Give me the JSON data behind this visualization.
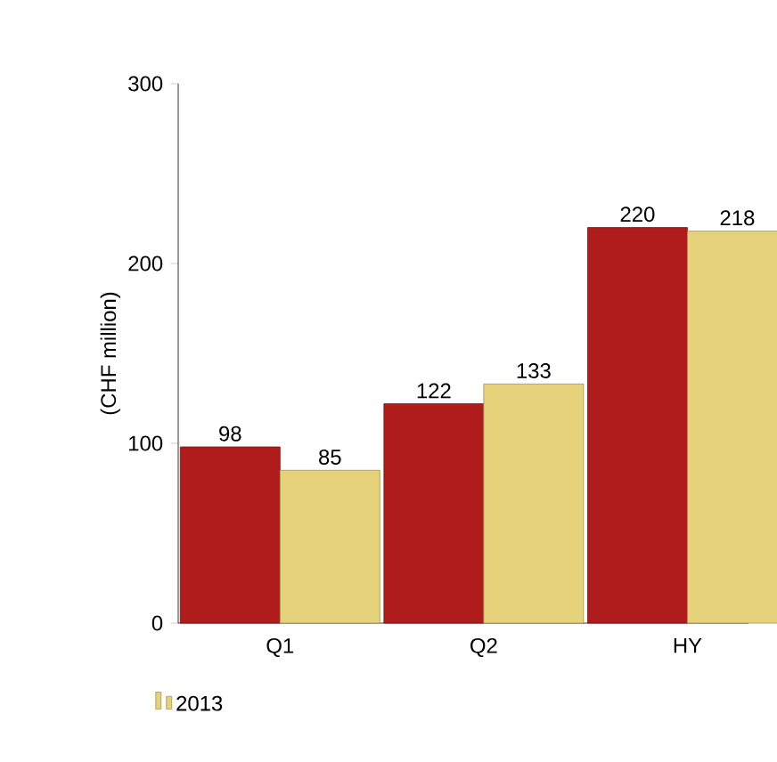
{
  "chart_data": {
    "type": "bar",
    "ylabel": "(CHF million)",
    "categories": [
      "Q1",
      "Q2",
      "HY"
    ],
    "series": [
      {
        "color": "#b01c1c",
        "values": [
          98,
          122,
          220
        ]
      },
      {
        "name": "2013",
        "color": "#e6d27a",
        "values": [
          85,
          133,
          218
        ]
      }
    ],
    "ylim": [
      0,
      300
    ],
    "yticks": [
      0,
      100,
      200,
      300
    ],
    "data_labels": true,
    "legend": "bottom left",
    "grid": false
  }
}
